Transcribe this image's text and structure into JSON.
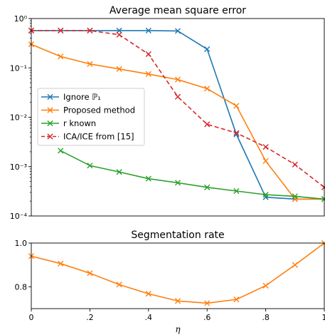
{
  "chart_data": [
    {
      "type": "line",
      "title": "Average mean square error",
      "yscale": "log",
      "ylim": [
        0.0001,
        1
      ],
      "xlim": [
        0,
        1
      ],
      "x": [
        0,
        0.1,
        0.2,
        0.3,
        0.4,
        0.5,
        0.6,
        0.7,
        0.8,
        0.9,
        1.0
      ],
      "y_tick_labels": [
        "10⁰",
        "10⁻¹",
        "10⁻²",
        "10⁻³",
        "10⁻⁴"
      ],
      "y_tick_values": [
        1,
        0.1,
        0.01,
        0.001,
        0.0001
      ],
      "legend_position": "center-left",
      "series": [
        {
          "name": "Ignore ℙ₁",
          "color": "#1f77b4",
          "dashed": false,
          "values": [
            0.57,
            0.57,
            0.57,
            0.57,
            0.57,
            0.56,
            0.24,
            0.0045,
            0.00024,
            0.00022,
            0.00022
          ]
        },
        {
          "name": "Proposed method",
          "color": "#ff7f0e",
          "dashed": false,
          "values": [
            0.3,
            0.17,
            0.12,
            0.095,
            0.075,
            0.058,
            0.038,
            0.017,
            0.0013,
            0.00022,
            0.00022
          ]
        },
        {
          "name": "r known",
          "color": "#2ca02c",
          "dashed": false,
          "values": [
            null,
            0.0021,
            0.00105,
            0.00078,
            0.00057,
            0.00047,
            0.00038,
            0.00032,
            0.00027,
            0.00025,
            0.00022
          ]
        },
        {
          "name": "ICA/ICE from [15]",
          "color": "#d62728",
          "dashed": true,
          "values": [
            0.57,
            0.57,
            0.57,
            0.47,
            0.19,
            0.026,
            0.0072,
            0.0048,
            0.0025,
            0.0011,
            0.00038
          ]
        }
      ]
    },
    {
      "type": "line",
      "title": "Segmentation rate",
      "xlabel": "η",
      "xlim": [
        0,
        1
      ],
      "ylim": [
        0.7,
        1.0
      ],
      "x": [
        0,
        0.1,
        0.2,
        0.3,
        0.4,
        0.5,
        0.6,
        0.7,
        0.8,
        0.9,
        1.0
      ],
      "x_tick_labels": [
        "0",
        ".2",
        ".4",
        ".6",
        ".8",
        "1"
      ],
      "x_tick_values": [
        0,
        0.2,
        0.4,
        0.6,
        0.8,
        1.0
      ],
      "y_tick_labels": [
        "1.0",
        "0.8"
      ],
      "y_tick_values": [
        1.0,
        0.8
      ],
      "series": [
        {
          "color": "#ff7f0e",
          "values": [
            0.94,
            0.906,
            0.862,
            0.81,
            0.768,
            0.735,
            0.725,
            0.742,
            0.805,
            0.9,
            1.0
          ]
        }
      ]
    }
  ]
}
